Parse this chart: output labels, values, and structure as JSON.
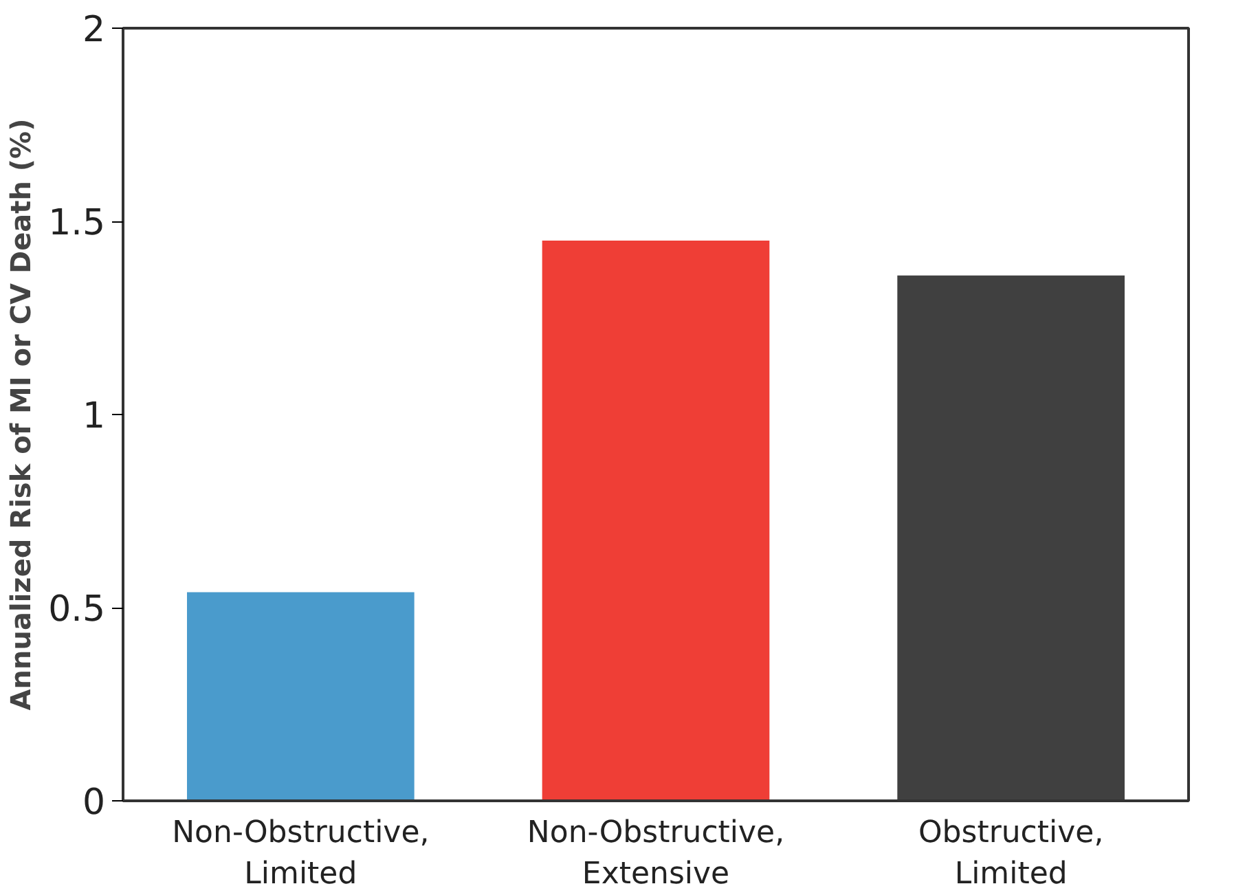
{
  "chart_data": {
    "type": "bar",
    "ylabel": "Annualized Risk of MI or CV Death (%)",
    "categories": [
      "Non-Obstructive, Limited",
      "Non-Obstructive, Extensive",
      "Obstructive, Limited"
    ],
    "values": [
      0.54,
      1.45,
      1.36
    ],
    "colors": [
      "#4a9bcc",
      "#ef3e36",
      "#404040"
    ],
    "ylim": [
      0,
      2
    ],
    "yticks": [
      0,
      0.5,
      1,
      1.5,
      2
    ],
    "grid": false
  }
}
